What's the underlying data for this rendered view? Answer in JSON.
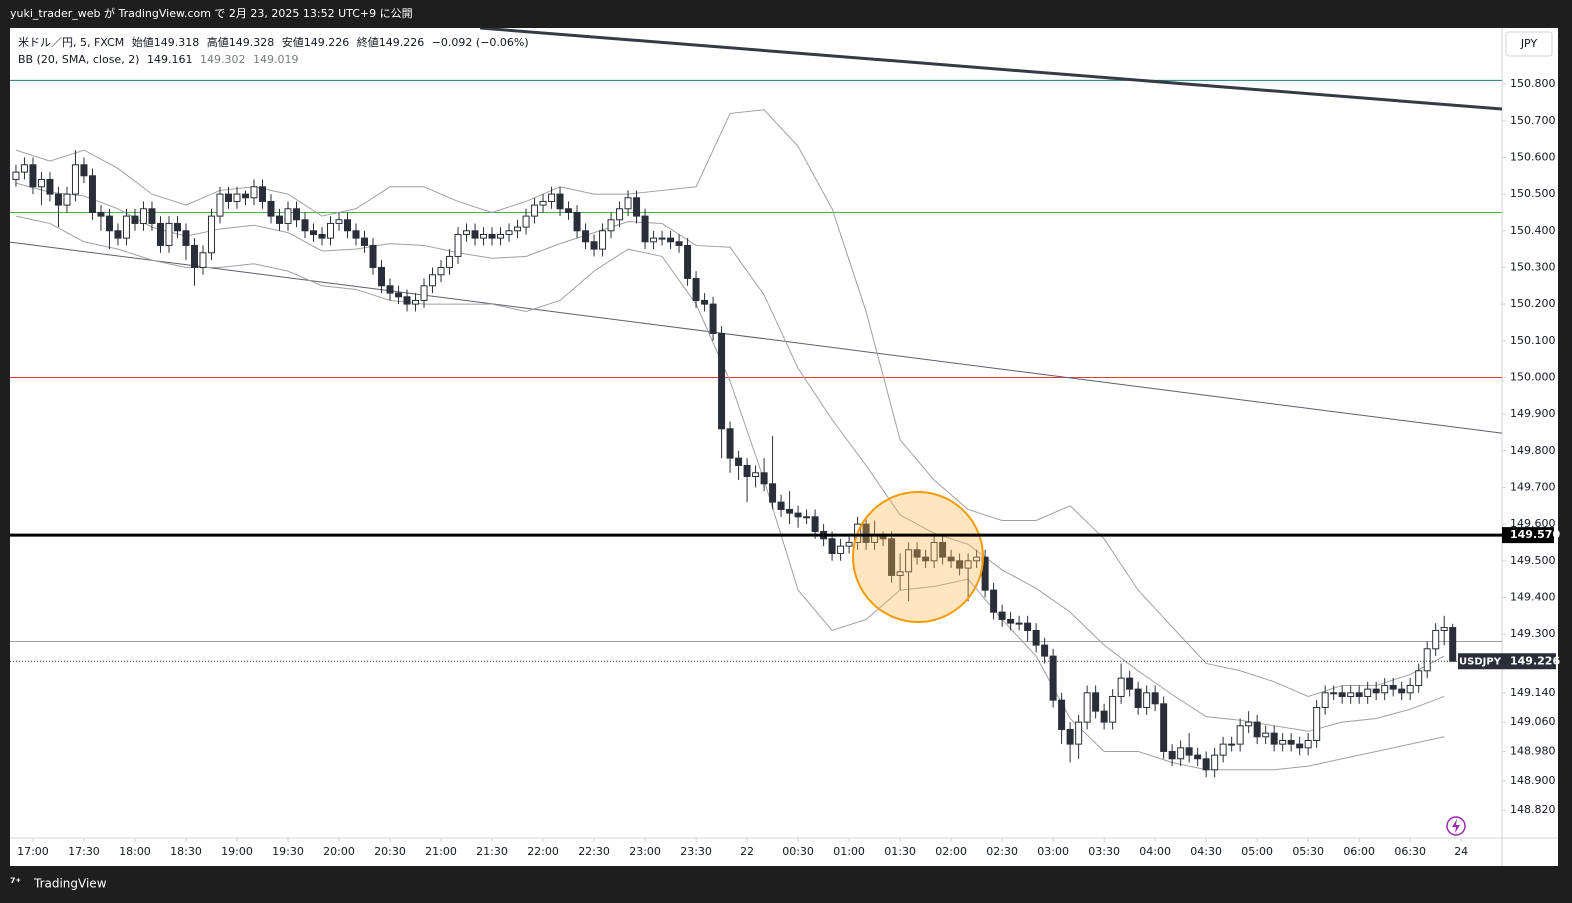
{
  "header": {
    "text": "yuki_trader_web が TradingView.com で 2月 23, 2025 13:52 UTC+9 に公開"
  },
  "footer": {
    "brand": "TradingView"
  },
  "chart_data": {
    "type": "candlestick",
    "legend": {
      "symbol": "米ドル／円, 5, FXCM",
      "open_label": "始値",
      "open": 149.318,
      "high_label": "高値",
      "high": 149.328,
      "low_label": "安値",
      "low": 149.226,
      "close_label": "終値",
      "close": 149.226,
      "change": "−0.092 (−0.06%)",
      "indicator": "BB (20, SMA, close, 2)",
      "basis": 149.161,
      "upper": 149.302,
      "lower": 149.019
    },
    "currency": "JPY",
    "ylim": [
      148.744,
      150.953
    ],
    "yticks": [
      {
        "value": 150.8,
        "label": "150.800"
      },
      {
        "value": 150.7,
        "label": "150.700"
      },
      {
        "value": 150.6,
        "label": "150.600"
      },
      {
        "value": 150.5,
        "label": "150.500"
      },
      {
        "value": 150.4,
        "label": "150.400"
      },
      {
        "value": 150.3,
        "label": "150.300"
      },
      {
        "value": 150.2,
        "label": "150.200"
      },
      {
        "value": 150.1,
        "label": "150.100"
      },
      {
        "value": 150.0,
        "label": "150.000"
      },
      {
        "value": 149.9,
        "label": "149.900"
      },
      {
        "value": 149.8,
        "label": "149.800"
      },
      {
        "value": 149.7,
        "label": "149.700"
      },
      {
        "value": 149.6,
        "label": "149.600"
      },
      {
        "value": 149.5,
        "label": "149.500"
      },
      {
        "value": 149.4,
        "label": "149.400"
      },
      {
        "value": 149.3,
        "label": "149.300"
      },
      {
        "value": 149.14,
        "label": "149.140"
      },
      {
        "value": 149.06,
        "label": "149.060"
      },
      {
        "value": 148.98,
        "label": "148.980"
      },
      {
        "value": 148.9,
        "label": "148.900"
      },
      {
        "value": 148.82,
        "label": "148.820"
      }
    ],
    "xlim": [
      -0.7,
      174.8
    ],
    "xticks": [
      {
        "value": 2,
        "label": "17:00"
      },
      {
        "value": 8,
        "label": "17:30"
      },
      {
        "value": 14,
        "label": "18:00"
      },
      {
        "value": 20,
        "label": "18:30"
      },
      {
        "value": 26,
        "label": "19:00"
      },
      {
        "value": 32,
        "label": "19:30"
      },
      {
        "value": 38,
        "label": "20:00"
      },
      {
        "value": 44,
        "label": "20:30"
      },
      {
        "value": 50,
        "label": "21:00"
      },
      {
        "value": 56,
        "label": "21:30"
      },
      {
        "value": 62,
        "label": "22:00"
      },
      {
        "value": 68,
        "label": "22:30"
      },
      {
        "value": 74,
        "label": "23:00"
      },
      {
        "value": 80,
        "label": "23:30"
      },
      {
        "value": 86,
        "label": "22"
      },
      {
        "value": 92,
        "label": "00:30"
      },
      {
        "value": 98,
        "label": "01:00"
      },
      {
        "value": 104,
        "label": "01:30"
      },
      {
        "value": 110,
        "label": "02:00"
      },
      {
        "value": 116,
        "label": "02:30"
      },
      {
        "value": 122,
        "label": "03:00"
      },
      {
        "value": 128,
        "label": "03:30"
      },
      {
        "value": 134,
        "label": "04:00"
      },
      {
        "value": 140,
        "label": "04:30"
      },
      {
        "value": 146,
        "label": "05:00"
      },
      {
        "value": 152,
        "label": "05:30"
      },
      {
        "value": 158,
        "label": "06:00"
      },
      {
        "value": 164,
        "label": "06:30"
      },
      {
        "value": 170,
        "label": "24"
      }
    ],
    "candles": {
      "up_color": "#ffffff",
      "down_color": "#2a2e39",
      "border_color": "#2a2e39",
      "open": [
        150.54,
        150.56,
        150.58,
        150.52,
        150.54,
        150.5,
        150.47,
        150.5,
        150.58,
        150.55,
        150.45,
        150.44,
        150.4,
        150.38,
        150.44,
        150.42,
        150.46,
        150.42,
        150.36,
        150.42,
        150.4,
        150.36,
        150.3,
        150.34,
        150.44,
        150.5,
        150.48,
        150.5,
        150.49,
        150.52,
        150.48,
        150.44,
        150.42,
        150.46,
        150.43,
        150.4,
        150.39,
        150.38,
        150.42,
        150.43,
        150.4,
        150.38,
        150.36,
        150.3,
        150.25,
        150.23,
        150.22,
        150.2,
        150.21,
        150.25,
        150.28,
        150.3,
        150.33,
        150.39,
        150.4,
        150.38,
        150.39,
        150.38,
        150.39,
        150.4,
        150.41,
        150.44,
        150.47,
        150.48,
        150.5,
        150.46,
        150.45,
        150.4,
        150.37,
        150.35,
        150.4,
        150.43,
        150.46,
        150.49,
        150.44,
        150.37,
        150.38,
        150.38,
        150.37,
        150.36,
        150.27,
        150.21,
        150.2,
        150.12,
        149.86,
        149.78,
        149.76,
        149.73,
        149.74,
        149.71,
        149.66,
        149.64,
        149.63,
        149.62,
        149.62,
        149.58,
        149.56,
        149.52,
        149.54,
        149.55,
        149.6,
        149.55,
        149.57,
        149.56,
        149.46,
        149.47,
        149.53,
        149.51,
        149.5,
        149.55,
        149.51,
        149.5,
        149.48,
        149.5,
        149.51,
        149.42,
        149.36,
        149.34,
        149.33,
        149.33,
        149.31,
        149.27,
        149.24,
        149.12,
        149.04,
        149.0,
        149.06,
        149.14,
        149.09,
        149.06,
        149.13,
        149.18,
        149.15,
        149.1,
        149.14,
        149.11,
        148.98,
        148.96,
        148.99,
        148.97,
        148.96,
        148.93,
        148.97,
        149.0,
        149.0,
        149.05,
        149.06,
        149.02,
        149.03,
        149.0,
        149.01,
        149.0,
        148.99,
        149.01,
        149.1,
        149.14,
        149.14,
        149.13,
        149.14,
        149.13,
        149.15,
        149.14,
        149.16,
        149.15,
        149.14,
        149.16,
        149.2,
        149.26,
        149.31,
        149.318
      ],
      "high": [
        150.58,
        150.6,
        150.6,
        150.56,
        150.56,
        150.52,
        150.52,
        150.62,
        150.6,
        150.57,
        150.47,
        150.46,
        150.42,
        150.46,
        150.46,
        150.48,
        150.48,
        150.44,
        150.44,
        150.44,
        150.42,
        150.38,
        150.36,
        150.46,
        150.52,
        150.52,
        150.52,
        150.51,
        150.54,
        150.54,
        150.5,
        150.46,
        150.48,
        150.48,
        150.45,
        150.42,
        150.41,
        150.44,
        150.45,
        150.45,
        150.42,
        150.4,
        150.38,
        150.32,
        150.27,
        150.25,
        150.24,
        150.23,
        150.27,
        150.3,
        150.32,
        150.35,
        150.41,
        150.42,
        150.42,
        150.41,
        150.41,
        150.41,
        150.42,
        150.43,
        150.46,
        150.49,
        150.5,
        150.52,
        150.52,
        150.48,
        150.47,
        150.42,
        150.39,
        150.42,
        150.45,
        150.48,
        150.51,
        150.51,
        150.46,
        150.4,
        150.4,
        150.4,
        150.39,
        150.38,
        150.29,
        150.23,
        150.22,
        150.14,
        149.88,
        149.8,
        149.78,
        149.76,
        149.78,
        149.84,
        149.68,
        149.69,
        149.65,
        149.64,
        149.64,
        149.6,
        149.58,
        149.56,
        149.57,
        149.62,
        149.62,
        149.61,
        149.58,
        149.58,
        149.52,
        149.55,
        149.55,
        149.53,
        149.57,
        149.57,
        149.53,
        149.52,
        149.52,
        149.53,
        149.53,
        149.44,
        149.38,
        149.36,
        149.35,
        149.35,
        149.33,
        149.29,
        149.26,
        149.14,
        149.06,
        149.08,
        149.16,
        149.16,
        149.11,
        149.15,
        149.22,
        149.2,
        149.17,
        149.16,
        149.16,
        149.13,
        149.0,
        149.01,
        149.03,
        148.99,
        148.98,
        148.99,
        149.02,
        149.02,
        149.07,
        149.09,
        149.08,
        149.05,
        149.05,
        149.03,
        149.03,
        149.02,
        149.03,
        149.12,
        149.16,
        149.16,
        149.16,
        149.16,
        149.16,
        149.17,
        149.17,
        149.18,
        149.18,
        149.17,
        149.18,
        149.22,
        149.28,
        149.33,
        149.35,
        149.328
      ],
      "low": [
        150.52,
        150.54,
        150.5,
        150.47,
        150.48,
        150.41,
        150.45,
        150.48,
        150.53,
        150.43,
        150.4,
        150.35,
        150.36,
        150.36,
        150.4,
        150.4,
        150.4,
        150.34,
        150.34,
        150.38,
        150.32,
        150.25,
        150.28,
        150.32,
        150.42,
        150.46,
        150.46,
        150.47,
        150.47,
        150.46,
        150.42,
        150.4,
        150.4,
        150.41,
        150.38,
        150.37,
        150.36,
        150.36,
        150.4,
        150.38,
        150.36,
        150.34,
        150.28,
        150.23,
        150.21,
        150.2,
        150.18,
        150.18,
        150.19,
        150.23,
        150.26,
        150.28,
        150.31,
        150.37,
        150.36,
        150.36,
        150.36,
        150.36,
        150.37,
        150.38,
        150.39,
        150.42,
        150.45,
        150.46,
        150.44,
        150.43,
        150.38,
        150.35,
        150.33,
        150.33,
        150.38,
        150.41,
        150.44,
        150.42,
        150.35,
        150.35,
        150.36,
        150.35,
        150.34,
        150.25,
        150.19,
        150.18,
        150.1,
        149.78,
        149.74,
        149.72,
        149.66,
        149.7,
        149.69,
        149.64,
        149.62,
        149.6,
        149.59,
        149.6,
        149.56,
        149.54,
        149.5,
        149.5,
        149.52,
        149.53,
        149.53,
        149.53,
        149.54,
        149.44,
        149.42,
        149.39,
        149.49,
        149.48,
        149.48,
        149.49,
        149.48,
        149.46,
        149.39,
        149.48,
        149.4,
        149.34,
        149.32,
        149.31,
        149.31,
        149.28,
        149.25,
        149.22,
        149.1,
        149.0,
        148.95,
        148.96,
        149.04,
        149.07,
        149.04,
        149.04,
        149.11,
        149.13,
        149.08,
        149.08,
        149.09,
        148.96,
        148.94,
        148.94,
        148.95,
        148.94,
        148.91,
        148.91,
        148.95,
        148.98,
        148.98,
        149.03,
        149.0,
        149.0,
        148.98,
        148.98,
        148.98,
        148.97,
        148.97,
        148.99,
        149.08,
        149.12,
        149.11,
        149.11,
        149.11,
        149.11,
        149.12,
        149.12,
        149.13,
        149.12,
        149.12,
        149.14,
        149.18,
        149.24,
        149.27,
        149.226
      ],
      "close": [
        150.56,
        150.58,
        150.52,
        150.54,
        150.5,
        150.47,
        150.5,
        150.58,
        150.55,
        150.45,
        150.44,
        150.4,
        150.38,
        150.44,
        150.42,
        150.46,
        150.42,
        150.36,
        150.42,
        150.4,
        150.36,
        150.3,
        150.34,
        150.44,
        150.5,
        150.48,
        150.5,
        150.49,
        150.52,
        150.48,
        150.44,
        150.42,
        150.46,
        150.43,
        150.4,
        150.39,
        150.38,
        150.42,
        150.43,
        150.4,
        150.38,
        150.36,
        150.3,
        150.25,
        150.23,
        150.22,
        150.2,
        150.21,
        150.25,
        150.28,
        150.3,
        150.33,
        150.39,
        150.4,
        150.38,
        150.39,
        150.38,
        150.39,
        150.4,
        150.41,
        150.44,
        150.47,
        150.48,
        150.5,
        150.46,
        150.45,
        150.4,
        150.37,
        150.35,
        150.4,
        150.43,
        150.46,
        150.49,
        150.44,
        150.37,
        150.38,
        150.38,
        150.37,
        150.36,
        150.27,
        150.21,
        150.2,
        150.12,
        149.86,
        149.78,
        149.76,
        149.73,
        149.74,
        149.71,
        149.66,
        149.64,
        149.63,
        149.62,
        149.62,
        149.58,
        149.56,
        149.52,
        149.54,
        149.55,
        149.6,
        149.55,
        149.57,
        149.56,
        149.46,
        149.47,
        149.53,
        149.51,
        149.5,
        149.55,
        149.51,
        149.5,
        149.48,
        149.5,
        149.51,
        149.42,
        149.36,
        149.34,
        149.33,
        149.33,
        149.31,
        149.27,
        149.24,
        149.12,
        149.04,
        149.0,
        149.06,
        149.14,
        149.09,
        149.06,
        149.13,
        149.18,
        149.15,
        149.1,
        149.14,
        149.11,
        148.98,
        148.96,
        148.99,
        148.97,
        148.96,
        148.93,
        148.97,
        149.0,
        149.0,
        149.05,
        149.06,
        149.02,
        149.03,
        149.0,
        149.01,
        149.0,
        148.99,
        149.01,
        149.1,
        149.14,
        149.14,
        149.13,
        149.14,
        149.13,
        149.15,
        149.14,
        149.16,
        149.15,
        149.14,
        149.16,
        149.2,
        149.26,
        149.31,
        149.318,
        149.226
      ]
    },
    "bands": {
      "color": "#a0a0a0",
      "x": [
        0,
        4,
        8,
        12,
        16,
        20,
        24,
        28,
        32,
        36,
        40,
        44,
        48,
        52,
        56,
        60,
        64,
        68,
        72,
        76,
        80,
        84,
        88,
        92,
        96,
        100,
        104,
        108,
        112,
        116,
        120,
        124,
        128,
        132,
        136,
        140,
        144,
        148,
        152,
        156,
        160,
        164,
        168
      ],
      "upper": [
        150.62,
        150.59,
        150.62,
        150.57,
        150.5,
        150.47,
        150.51,
        150.52,
        150.5,
        150.44,
        150.46,
        150.52,
        150.52,
        150.48,
        150.45,
        150.48,
        150.52,
        150.5,
        150.5,
        150.51,
        150.52,
        150.72,
        150.73,
        150.63,
        150.46,
        150.18,
        149.83,
        149.72,
        149.64,
        149.61,
        149.61,
        149.65,
        149.56,
        149.42,
        149.32,
        149.22,
        149.2,
        149.17,
        149.13,
        149.16,
        149.16,
        149.19,
        149.24
      ],
      "basis": [
        150.53,
        150.505,
        150.495,
        150.46,
        150.41,
        150.385,
        150.405,
        150.415,
        150.395,
        150.345,
        150.35,
        150.365,
        150.36,
        150.34,
        150.325,
        150.33,
        150.365,
        150.395,
        150.425,
        150.42,
        150.36,
        150.355,
        150.225,
        150.025,
        149.885,
        149.76,
        149.625,
        149.575,
        149.545,
        149.475,
        149.425,
        149.36,
        149.27,
        149.2,
        149.135,
        149.075,
        149.065,
        149.05,
        149.035,
        149.06,
        149.07,
        149.095,
        149.13
      ],
      "lower": [
        150.44,
        150.42,
        150.37,
        150.35,
        150.32,
        150.3,
        150.3,
        150.31,
        150.29,
        150.25,
        150.24,
        150.21,
        150.2,
        150.2,
        150.2,
        150.18,
        150.21,
        150.29,
        150.35,
        150.33,
        150.2,
        149.99,
        149.72,
        149.42,
        149.31,
        149.34,
        149.42,
        149.43,
        149.45,
        149.34,
        149.24,
        149.07,
        148.98,
        148.98,
        148.95,
        148.93,
        148.93,
        148.93,
        148.94,
        148.96,
        148.98,
        149.0,
        149.02
      ]
    },
    "trendlines": [
      {
        "x": [
          54.6,
          174.8
        ],
        "y": [
          150.953,
          150.732
        ],
        "color": "#363a45",
        "width": 3
      },
      {
        "x": [
          -0.7,
          174.8
        ],
        "y": [
          150.369,
          149.848
        ],
        "color": "#5d606b",
        "width": 1
      }
    ],
    "hlines": [
      {
        "y": 150.81,
        "color": "#22787f",
        "width": 1
      },
      {
        "y": 150.45,
        "color": "#4caf50",
        "width": 1
      },
      {
        "y": 150.0,
        "color": "#e53935",
        "width": 1
      },
      {
        "y": 149.28,
        "color": "#9e9e9e",
        "width": 1
      }
    ],
    "level": {
      "value": 149.57,
      "label": "149.570",
      "color": "#000000"
    },
    "last_price": {
      "symbol": "USDJPY",
      "value": 149.226,
      "color": "#2a2e39"
    }
  }
}
